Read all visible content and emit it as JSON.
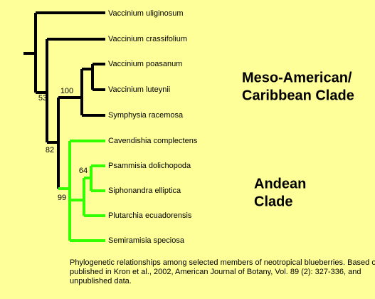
{
  "taxa": [
    "Vaccinium uliginosum",
    "Vaccinium crassifolium",
    "Vaccinium poasanum",
    "Vaccinium luteynii",
    "Symphysia racemosa",
    "Cavendishia complectens",
    "Psammisia dolichopoda",
    "Siphonandra elliptica",
    "Plutarchia ecuadorensis",
    "Semiramisia speciosa"
  ],
  "support": [
    53,
    100,
    82,
    64,
    99
  ],
  "clades": [
    {
      "lines": [
        "Meso-American/",
        "Caribbean Clade"
      ]
    },
    {
      "lines": [
        "Andean",
        "Clade"
      ]
    }
  ],
  "caption": [
    "Phylogenetic relationships among selected members of neotropical blueberries. Based on data",
    "published in Kron et al., 2002, American Journal of Botany, Vol. 89 (2): 327-336, and",
    "unpublished data."
  ]
}
